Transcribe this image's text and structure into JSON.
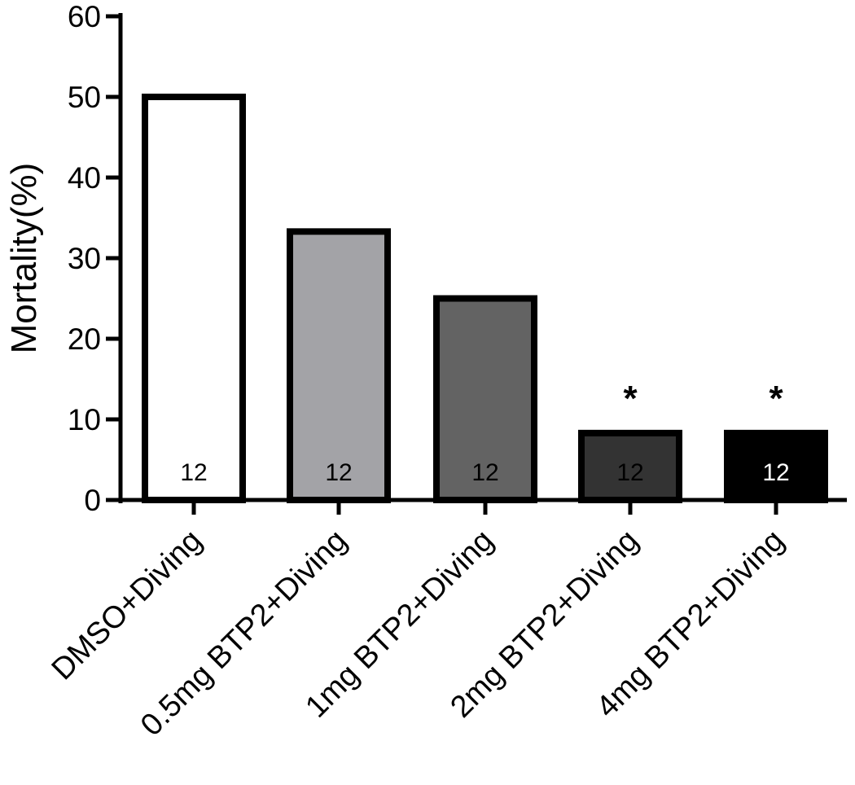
{
  "chart_data": {
    "type": "bar",
    "title": "",
    "xlabel": "",
    "ylabel": "Mortality(%)",
    "ylim": [
      0,
      60
    ],
    "yticks": [
      0,
      10,
      20,
      30,
      40,
      50,
      60
    ],
    "grid": false,
    "categories": [
      "DMSO+Diving",
      "0.5mg BTP2+Diving",
      "1mg BTP2+Diving",
      "2mg BTP2+Diving",
      "4mg BTP2+Diving"
    ],
    "values": [
      50,
      33.3,
      25,
      8.3,
      8.3
    ],
    "bar_colors": [
      "#ffffff",
      "#a3a3a7",
      "#636363",
      "#333333",
      "#000000"
    ],
    "n_labels": [
      "12",
      "12",
      "12",
      "12",
      "12"
    ],
    "n_label_colors": [
      "#000000",
      "#000000",
      "#000000",
      "#000000",
      "#ffffff"
    ],
    "significance": [
      "",
      "",
      "",
      "*",
      "*"
    ]
  }
}
